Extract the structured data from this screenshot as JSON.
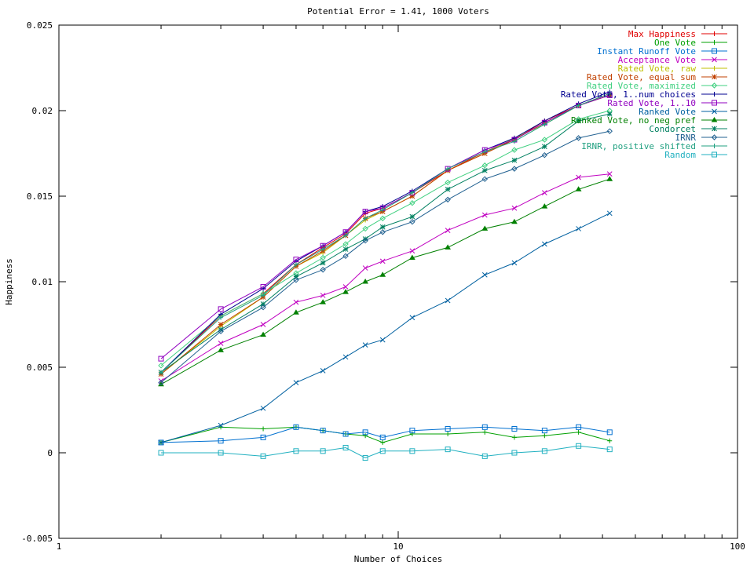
{
  "chart_data": {
    "type": "line",
    "title": "Potential Error = 1.41, 1000 Voters",
    "xlabel": "Number of Choices",
    "ylabel": "Happiness",
    "xscale": "log",
    "xlim": [
      1,
      100
    ],
    "ylim": [
      -0.005,
      0.025
    ],
    "xticks": [
      1,
      10,
      100
    ],
    "yticks": [
      -0.005,
      0,
      0.005,
      0.01,
      0.015,
      0.02,
      0.025
    ],
    "xtick_labels": [
      "1",
      "10",
      "100"
    ],
    "ytick_labels": [
      "-0.005",
      "0",
      "0.005",
      "0.01",
      "0.015",
      "0.02",
      "0.025"
    ],
    "grid": false,
    "legend_position": "top-right",
    "x": [
      2,
      3,
      4,
      5,
      6,
      7,
      8,
      9,
      11,
      14,
      18,
      22,
      27,
      34,
      42
    ],
    "series": [
      {
        "name": "Max Happiness",
        "color": "#e00000",
        "marker": "plus",
        "values": [
          0.0047,
          0.008,
          0.0093,
          0.011,
          0.012,
          0.0128,
          0.014,
          0.0143,
          0.0152,
          0.0165,
          0.0176,
          0.0183,
          0.0194,
          0.0203,
          0.021
        ]
      },
      {
        "name": "One Vote",
        "color": "#00a000",
        "marker": "plus",
        "values": [
          0.0006,
          0.0015,
          0.0014,
          0.0015,
          0.0013,
          0.0011,
          0.001,
          0.0006,
          0.0011,
          0.0011,
          0.0012,
          0.0009,
          0.001,
          0.0012,
          0.0007
        ]
      },
      {
        "name": "Instant Runoff Vote",
        "color": "#0070d0",
        "marker": "square",
        "values": [
          0.0006,
          0.0007,
          0.0009,
          0.0015,
          0.0013,
          0.0011,
          0.0012,
          0.0009,
          0.0013,
          0.0014,
          0.0015,
          0.0014,
          0.0013,
          0.0015,
          0.0012
        ]
      },
      {
        "name": "Acceptance Vote",
        "color": "#c000c0",
        "marker": "x",
        "values": [
          0.0042,
          0.0064,
          0.0075,
          0.0088,
          0.0092,
          0.0097,
          0.0108,
          0.0112,
          0.0118,
          0.013,
          0.0139,
          0.0143,
          0.0152,
          0.0161,
          0.0163
        ]
      },
      {
        "name": "Rated Vote, raw",
        "color": "#c0c000",
        "marker": "plus",
        "values": [
          0.0046,
          0.0074,
          0.0091,
          0.0109,
          0.0117,
          0.0127,
          0.0136,
          0.0141,
          0.015,
          0.0165,
          0.0175,
          0.0184,
          0.0192,
          0.0203,
          0.0209
        ]
      },
      {
        "name": "Rated Vote, equal sum",
        "color": "#c04000",
        "marker": "star",
        "values": [
          0.0046,
          0.0075,
          0.0091,
          0.0109,
          0.0118,
          0.0127,
          0.0137,
          0.0141,
          0.015,
          0.0165,
          0.0175,
          0.0183,
          0.0193,
          0.0203,
          0.0209
        ]
      },
      {
        "name": "Rated Vote, maximized",
        "color": "#40d080",
        "marker": "diamond",
        "values": [
          0.0051,
          0.008,
          0.0093,
          0.0105,
          0.0114,
          0.0122,
          0.0131,
          0.0137,
          0.0146,
          0.0158,
          0.0168,
          0.0177,
          0.0183,
          0.0195,
          0.02
        ]
      },
      {
        "name": "Rated Vote, 1..num choices",
        "color": "#000090",
        "marker": "plus",
        "values": [
          0.0047,
          0.0081,
          0.0096,
          0.0112,
          0.0121,
          0.0129,
          0.0141,
          0.0144,
          0.0153,
          0.0166,
          0.0177,
          0.0184,
          0.0194,
          0.0204,
          0.0211
        ]
      },
      {
        "name": "Rated Vote, 1..10",
        "color": "#9000c0",
        "marker": "square",
        "values": [
          0.0055,
          0.0084,
          0.0097,
          0.0113,
          0.0121,
          0.0129,
          0.0141,
          0.0143,
          0.0152,
          0.0166,
          0.0177,
          0.0183,
          0.0193,
          0.0203,
          0.0209
        ]
      },
      {
        "name": "Ranked Vote",
        "color": "#0060a0",
        "marker": "x",
        "values": [
          0.0006,
          0.0016,
          0.0026,
          0.0041,
          0.0048,
          0.0056,
          0.0063,
          0.0066,
          0.0079,
          0.0089,
          0.0104,
          0.0111,
          0.0122,
          0.0131,
          0.014
        ]
      },
      {
        "name": "Ranked Vote, no neg pref",
        "color": "#008000",
        "marker": "triangle",
        "values": [
          0.004,
          0.006,
          0.0069,
          0.0082,
          0.0088,
          0.0094,
          0.01,
          0.0104,
          0.0114,
          0.012,
          0.0131,
          0.0135,
          0.0144,
          0.0154,
          0.016
        ]
      },
      {
        "name": "Condorcet",
        "color": "#008060",
        "marker": "star",
        "values": [
          0.0047,
          0.0072,
          0.0087,
          0.0103,
          0.0111,
          0.0119,
          0.0125,
          0.0132,
          0.0138,
          0.0154,
          0.0165,
          0.0171,
          0.0179,
          0.0194,
          0.0198
        ]
      },
      {
        "name": "IRNR",
        "color": "#206090",
        "marker": "diamond",
        "values": [
          0.0041,
          0.0071,
          0.0085,
          0.0101,
          0.0107,
          0.0115,
          0.0124,
          0.0129,
          0.0135,
          0.0148,
          0.016,
          0.0166,
          0.0174,
          0.0184,
          0.0188
        ]
      },
      {
        "name": "IRNR, positive shifted",
        "color": "#20a080",
        "marker": "plus",
        "values": [
          0.0047,
          0.0079,
          0.0092,
          0.011,
          0.0119,
          0.0127,
          0.0137,
          0.0142,
          0.0152,
          0.0166,
          0.0176,
          0.0182,
          0.0192,
          0.0203,
          0.021
        ]
      },
      {
        "name": "Random",
        "color": "#20b0c0",
        "marker": "square",
        "values": [
          0.0,
          0.0,
          -0.0002,
          0.0001,
          0.0001,
          0.0003,
          -0.0003,
          0.0001,
          0.0001,
          0.0002,
          -0.0002,
          0.0,
          0.0001,
          0.0004,
          0.0002
        ]
      }
    ]
  }
}
